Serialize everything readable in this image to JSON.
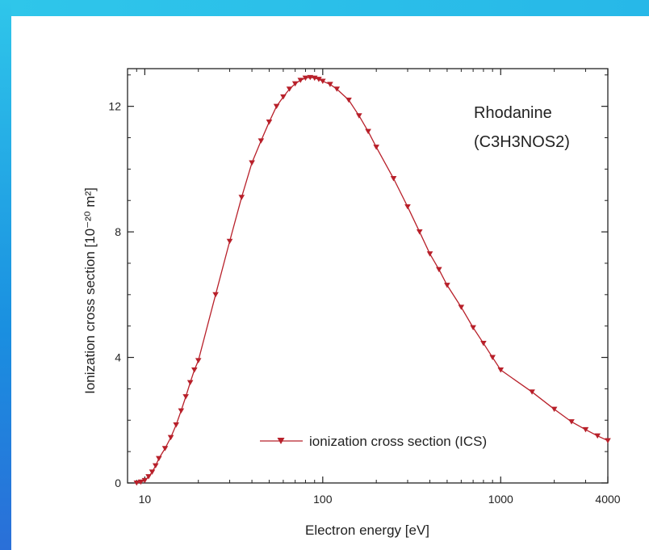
{
  "chart_data": {
    "type": "line",
    "xlabel": "Electron energy [eV]",
    "ylabel": "Ionization cross section [10⁻²⁰ m²]",
    "xscale": "log",
    "xlim": [
      8,
      4000
    ],
    "ylim": [
      0,
      13.2
    ],
    "grid": false,
    "legend_position": "bottom-center",
    "x_tick_labels": [
      "10",
      "100",
      "1000",
      "4000"
    ],
    "x_ticks": [
      10,
      100,
      1000,
      4000
    ],
    "y_tick_labels": [
      "0",
      "4",
      "8",
      "12"
    ],
    "y_ticks": [
      0,
      4,
      8,
      12
    ],
    "annotation": {
      "name": "Rhodanine",
      "formula": "(C3H3NOS2)"
    },
    "series": [
      {
        "name": "ionization cross section (ICS)",
        "color": "#b8202a",
        "marker": "triangle-down",
        "x": [
          9.0,
          9.5,
          10.0,
          10.5,
          11,
          11.5,
          12,
          13,
          14,
          15,
          16,
          17,
          18,
          19,
          20,
          25,
          30,
          35,
          40,
          45,
          50,
          55,
          60,
          65,
          70,
          75,
          80,
          85,
          90,
          95,
          100,
          110,
          120,
          140,
          160,
          180,
          200,
          250,
          300,
          350,
          400,
          450,
          500,
          600,
          700,
          800,
          900,
          1000,
          1500,
          2000,
          2500,
          3000,
          3500,
          4000
        ],
        "y": [
          0.0,
          0.03,
          0.08,
          0.2,
          0.35,
          0.55,
          0.78,
          1.1,
          1.45,
          1.85,
          2.3,
          2.75,
          3.2,
          3.6,
          3.9,
          6.0,
          7.7,
          9.1,
          10.2,
          10.9,
          11.5,
          12.0,
          12.3,
          12.55,
          12.72,
          12.83,
          12.9,
          12.92,
          12.9,
          12.86,
          12.8,
          12.7,
          12.55,
          12.2,
          11.7,
          11.2,
          10.7,
          9.7,
          8.8,
          8.0,
          7.3,
          6.8,
          6.3,
          5.6,
          4.95,
          4.45,
          4.0,
          3.6,
          2.9,
          2.35,
          1.95,
          1.7,
          1.5,
          1.35
        ]
      }
    ]
  }
}
